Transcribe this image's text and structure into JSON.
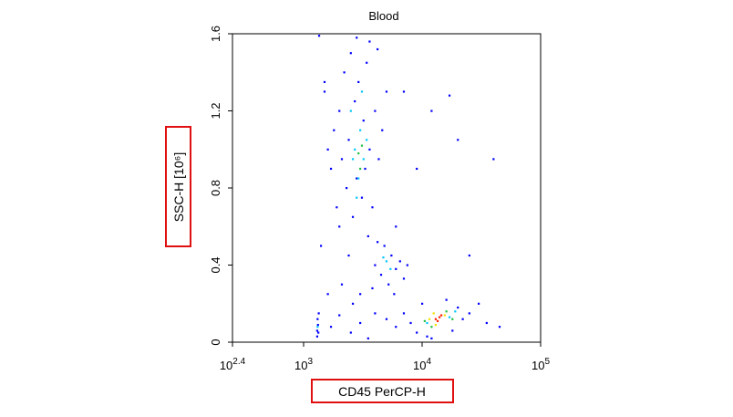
{
  "chart_data": {
    "type": "scatter",
    "title": "Blood",
    "xlabel": "CD45 PerCP-H",
    "ylabel": "SSC-H [10⁶]",
    "xscale": "log",
    "xlim": [
      251.19,
      100000
    ],
    "ylim": [
      0,
      1.6
    ],
    "xticks": [
      {
        "value": 251.19,
        "label": "10",
        "exponent": "2.4"
      },
      {
        "value": 1000,
        "label": "10",
        "exponent": "3"
      },
      {
        "value": 10000,
        "label": "10",
        "exponent": "4"
      },
      {
        "value": 100000,
        "label": "10",
        "exponent": "5"
      }
    ],
    "yticks": [
      0,
      0.4,
      0.8,
      1.2,
      1.6
    ],
    "series": [
      {
        "color": "#0000ff",
        "x": [
          1500,
          1700,
          1800,
          1900,
          2000,
          2100,
          2200,
          2300,
          2400,
          2500,
          2600,
          2700,
          2800,
          2900,
          3100,
          3200,
          3300,
          3400,
          3600,
          3800,
          4000,
          4300,
          4600,
          5000,
          1600,
          2000,
          3500,
          2800,
          3600,
          4200,
          1400,
          1350,
          1600,
          2100,
          2600,
          3000,
          6000,
          7000,
          9000,
          12000,
          17000,
          20000,
          40000,
          25000,
          30000,
          45000,
          35000,
          1500,
          2400,
          4000,
          4500,
          4800,
          5200,
          5500,
          6000,
          6500,
          7000,
          3800,
          4200,
          5800,
          7500,
          8000,
          9000,
          10000,
          11000,
          18000,
          20000,
          22000,
          25000,
          16000,
          12000,
          7000,
          6000,
          5000,
          1300,
          1300,
          1320,
          1310,
          1340,
          1330,
          1700,
          2000,
          2500,
          3000,
          3500,
          4000
        ],
        "values": [
          1.3,
          0.9,
          1.1,
          0.7,
          1.2,
          0.95,
          1.4,
          0.8,
          1.05,
          1.5,
          0.65,
          1.25,
          0.85,
          1.35,
          0.75,
          1.15,
          0.9,
          1.45,
          1.0,
          0.7,
          1.2,
          0.95,
          1.1,
          1.3,
          1.0,
          0.6,
          0.55,
          1.58,
          1.56,
          1.52,
          0.5,
          1.59,
          0.25,
          0.3,
          0.2,
          0.25,
          0.6,
          1.3,
          0.9,
          1.2,
          1.28,
          1.05,
          0.95,
          0.45,
          0.2,
          0.08,
          0.1,
          1.35,
          0.45,
          0.4,
          0.35,
          0.5,
          0.3,
          0.45,
          0.38,
          0.42,
          0.33,
          0.28,
          0.52,
          0.25,
          0.4,
          0.1,
          0.05,
          0.2,
          0.03,
          0.06,
          0.18,
          0.12,
          0.15,
          0.22,
          0.02,
          0.15,
          0.08,
          0.12,
          0.03,
          0.06,
          0.09,
          0.12,
          0.15,
          0.05,
          0.08,
          0.14,
          0.05,
          0.1,
          0.02,
          0.15
        ]
      },
      {
        "color": "#00c8ff",
        "x": [
          2700,
          3000,
          3200,
          2900,
          2500,
          3400,
          2600,
          3100,
          2800,
          5000,
          5400,
          4700,
          11000,
          17000,
          19000,
          1310
        ],
        "values": [
          1.0,
          1.1,
          0.95,
          0.85,
          1.2,
          1.05,
          0.95,
          1.3,
          0.75,
          0.42,
          0.38,
          0.44,
          0.1,
          0.13,
          0.16,
          0.08
        ]
      },
      {
        "color": "#20c040",
        "x": [
          2900,
          3100,
          3000,
          10500,
          18000,
          12000,
          16000
        ],
        "values": [
          0.98,
          1.02,
          0.9,
          0.11,
          0.12,
          0.08,
          0.16
        ]
      },
      {
        "color": "#f0e000",
        "x": [
          11500,
          13000,
          15500,
          12500
        ],
        "values": [
          0.12,
          0.09,
          0.14,
          0.15
        ]
      },
      {
        "color": "#ff2000",
        "x": [
          13000,
          14000,
          13500,
          14500
        ],
        "values": [
          0.12,
          0.13,
          0.11,
          0.14
        ]
      }
    ]
  }
}
